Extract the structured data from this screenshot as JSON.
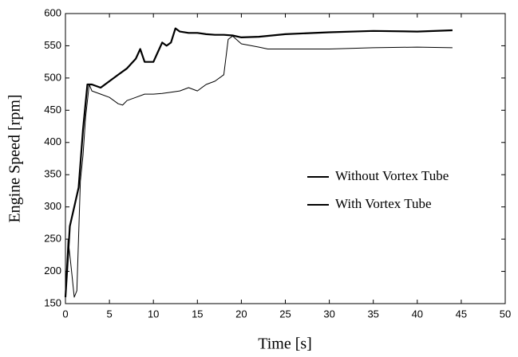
{
  "chart_data": {
    "type": "line",
    "x_label": "Time [s]",
    "y_label": "Engine Speed [rpm]",
    "xlim": [
      0,
      50
    ],
    "ylim": [
      150,
      600
    ],
    "xticks": [
      0,
      5,
      10,
      15,
      20,
      25,
      30,
      35,
      40,
      45,
      50
    ],
    "yticks": [
      150,
      200,
      250,
      300,
      350,
      400,
      450,
      500,
      550,
      600
    ],
    "grid": false,
    "legend": "center-right",
    "series": [
      {
        "name": "Without Vortex Tube",
        "color": "#000000",
        "x": [
          0,
          0.5,
          1,
          1.5,
          2,
          2.5,
          3,
          4,
          5,
          6,
          7,
          8,
          8.5,
          9,
          10,
          10.5,
          11,
          11.5,
          12,
          12.5,
          13,
          14,
          15,
          16,
          17,
          18,
          19,
          20,
          22,
          25,
          30,
          35,
          40,
          44
        ],
        "values": [
          160,
          270,
          300,
          330,
          420,
          490,
          490,
          485,
          495,
          505,
          515,
          530,
          545,
          525,
          525,
          540,
          555,
          550,
          555,
          577,
          572,
          570,
          570,
          568,
          567,
          567,
          566,
          563,
          564,
          568,
          571,
          573,
          572,
          574
        ]
      },
      {
        "name": "With Vortex Tube",
        "color": "#000000",
        "x": [
          0,
          0.3,
          0.7,
          1,
          1.3,
          1.7,
          2,
          2.3,
          2.7,
          3,
          4,
          5,
          6,
          6.5,
          7,
          8,
          9,
          10,
          11,
          12,
          13,
          14,
          15,
          16,
          17,
          18,
          18.5,
          19,
          20,
          22,
          23,
          25,
          30,
          35,
          40,
          44
        ],
        "values": [
          170,
          250,
          200,
          160,
          170,
          340,
          380,
          440,
          490,
          480,
          475,
          470,
          460,
          458,
          465,
          470,
          475,
          475,
          476,
          478,
          480,
          485,
          480,
          490,
          495,
          505,
          560,
          565,
          553,
          548,
          545,
          545,
          545,
          547,
          548,
          547
        ]
      }
    ]
  }
}
